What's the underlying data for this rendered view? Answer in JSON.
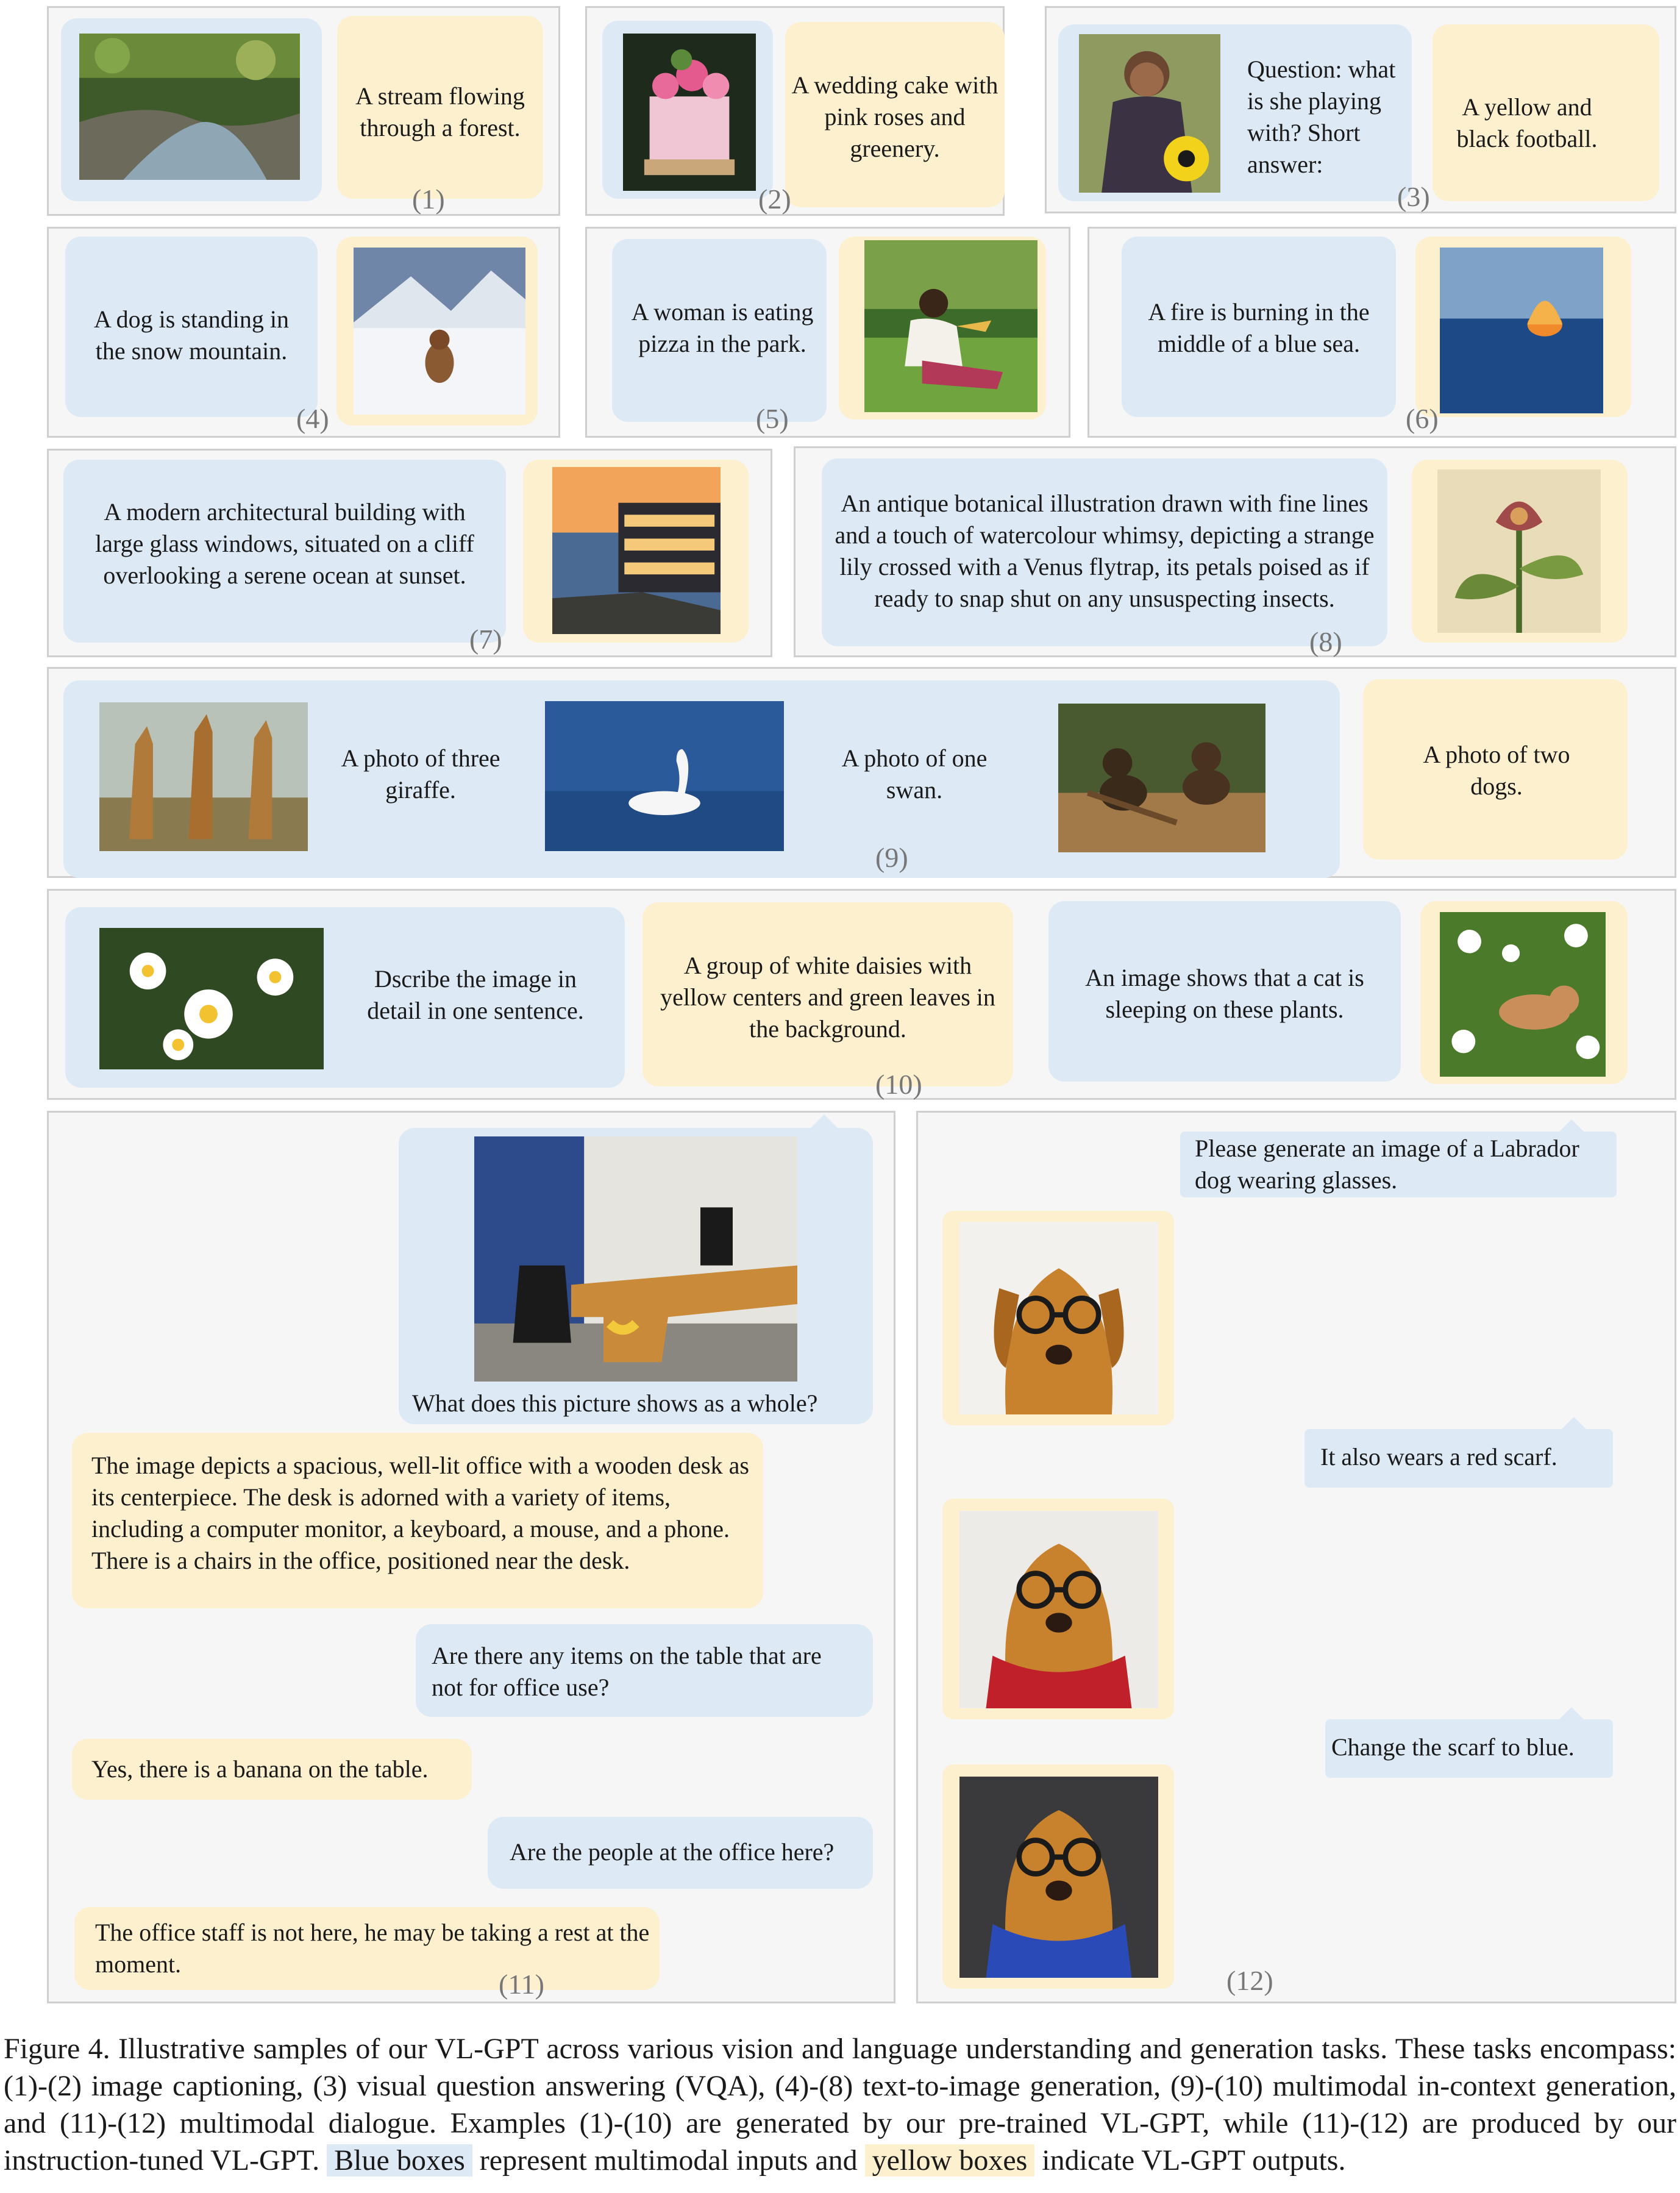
{
  "panels": {
    "p1": {
      "num": "(1)",
      "output": "A stream flowing through a forest."
    },
    "p2": {
      "num": "(2)",
      "output": "A wedding cake with pink roses and greenery."
    },
    "p3": {
      "num": "(3)",
      "input": "Question: what is she playing with? Short answer:",
      "output": "A yellow and black football."
    },
    "p4": {
      "num": "(4)",
      "input": "A dog is standing in the snow mountain."
    },
    "p5": {
      "num": "(5)",
      "input": "A woman is eating pizza in the park."
    },
    "p6": {
      "num": "(6)",
      "input": "A fire is burning in the middle of a blue sea."
    },
    "p7": {
      "num": "(7)",
      "input": "A modern architectural building with large glass windows, situated on a cliff overlooking a serene ocean at sunset."
    },
    "p8": {
      "num": "(8)",
      "input": "An antique botanical illustration drawn with fine lines and a touch of watercolour whimsy, depicting a strange lily crossed with a Venus flytrap, its petals poised as if ready to snap shut on any unsuspecting insects."
    },
    "p9": {
      "num": "(9)",
      "in1": "A photo of three giraffe.",
      "in2": "A photo of one swan.",
      "output": "A photo of two dogs."
    },
    "p10": {
      "num": "(10)",
      "in1": "Dscribe the image in detail in one sentence.",
      "out1": "A group of white daisies with yellow centers and green leaves in the background.",
      "in2": "An image shows that a cat is sleeping on these plants."
    },
    "p11": {
      "num": "(11)",
      "q1": "What does this picture shows as a whole?",
      "a1": "The image depicts a spacious, well-lit office with a wooden desk as its centerpiece. The desk is adorned with a variety of items, including a computer monitor, a keyboard, a mouse, and a phone. There is  a chairs in the office, positioned near the desk.",
      "q2": "Are there any items on the table that are not for office use?",
      "a2": "Yes,  there is a banana on the table.",
      "q3": "Are the people at the office here?",
      "a3": "The office staff is not here, he may be taking a rest at the moment."
    },
    "p12": {
      "num": "(12)",
      "q1": "Please generate an image of a Labrador dog wearing glasses.",
      "q2": "It  also wears a red scarf.",
      "q3": "Change the scarf to blue."
    }
  },
  "caption": {
    "part1": "Figure 4.  Illustrative samples of our VL-GPT across various vision and language understanding and generation tasks.  These tasks encompass: (1)-(2) image captioning, (3) visual question answering (VQA), (4)-(8) text-to-image generation, (9)-(10) multimodal in-context generation, and (11)-(12) multimodal dialogue. Examples (1)-(10) are generated by our pre-trained VL-GPT, while (11)-(12) are produced by our instruction-tuned VL-GPT.",
    "blue_label": "Blue boxes",
    "part2": "represent multimodal inputs and",
    "yellow_label": "yellow boxes",
    "part3": "indicate VL-GPT outputs."
  }
}
